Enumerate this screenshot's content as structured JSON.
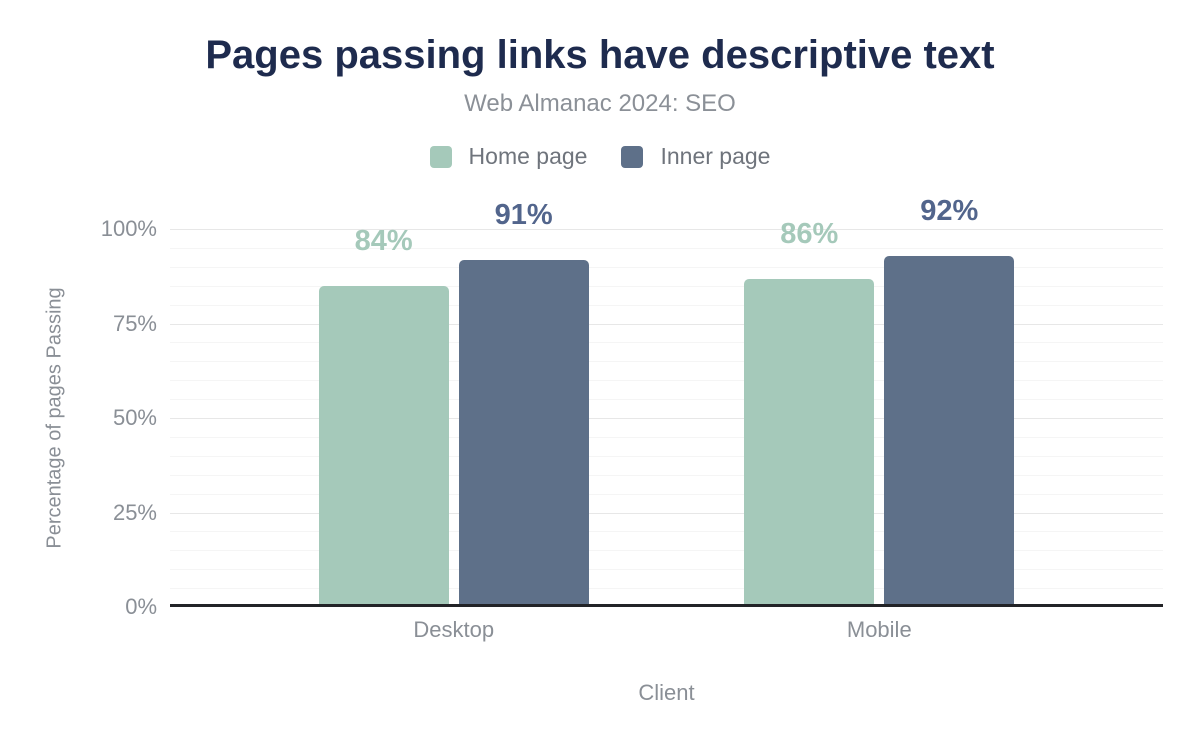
{
  "header": {
    "title": "Pages passing links have descriptive text",
    "subtitle": "Web Almanac 2024: SEO"
  },
  "chart_data": {
    "type": "bar",
    "title": "Pages passing links have descriptive text",
    "subtitle": "Web Almanac 2024: SEO",
    "categories": [
      "Desktop",
      "Mobile"
    ],
    "series": [
      {
        "name": "Home page",
        "color": "#a5c9ba",
        "label_color": "#a5c9ba",
        "values": [
          84,
          86
        ],
        "value_labels": [
          "84%",
          "86%"
        ]
      },
      {
        "name": "Inner page",
        "color": "#5e7089",
        "label_color": "#52658c",
        "values": [
          91,
          92
        ],
        "value_labels": [
          "91%",
          "92%"
        ]
      }
    ],
    "xlabel": "Client",
    "ylabel": "Percentage of pages Passing",
    "ylim": [
      0,
      100
    ],
    "yticks": [
      {
        "value": 0,
        "label": "0%"
      },
      {
        "value": 25,
        "label": "25%"
      },
      {
        "value": 50,
        "label": "50%"
      },
      {
        "value": 75,
        "label": "75%"
      },
      {
        "value": 100,
        "label": "100%"
      }
    ],
    "minor_grid_step": 5,
    "grid": "horizontal major every 25%, faint minor every 5%",
    "legend_position": "top-center"
  },
  "colors": {
    "title": "#1e2b4e",
    "subtitle": "#8b9097",
    "axis_text": "#8a8f96",
    "legend_text": "#6f747c",
    "grid_major": "#e7e7e7",
    "grid_minor": "#f5f5f5",
    "axis_line": "#222327"
  }
}
